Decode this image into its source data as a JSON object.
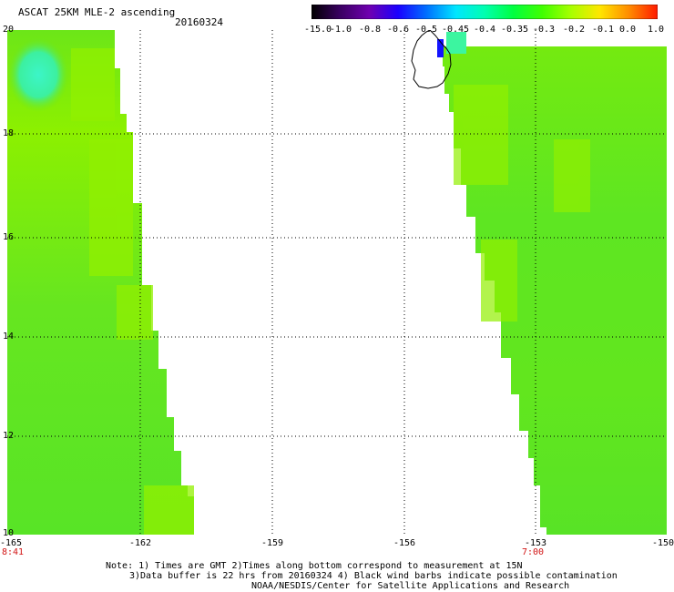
{
  "header": {
    "title": "ASCAT 25KM MLE-2 ascending",
    "date": "20160324"
  },
  "colorbar": {
    "labels": [
      "-15.0",
      "-1.0",
      "-0.8",
      "-0.6",
      "-0.5",
      "-0.45",
      "-0.4",
      "-0.35",
      "-0.3",
      "-0.2",
      "-0.1",
      "0.0",
      "1.0"
    ],
    "colors": [
      "#000000",
      "#3a0062",
      "#6f00b0",
      "#1a00ff",
      "#0070ff",
      "#00e6ff",
      "#00ffb0",
      "#00ff40",
      "#40ff00",
      "#a8ff00",
      "#ffe600",
      "#ff8c00",
      "#ff1a00"
    ]
  },
  "map": {
    "lat_labels": [
      "20",
      "18",
      "16",
      "14",
      "12",
      "10"
    ],
    "lon_labels": [
      "-165",
      "-162",
      "-159",
      "-156",
      "-153",
      "-150"
    ],
    "time_labels": [
      "8:41",
      "7:00"
    ],
    "fill_colors": {
      "lime": "#8cf000",
      "green": "#50e628",
      "cyan": "#3cf5c8",
      "blue": "#1414ff"
    }
  },
  "notes": {
    "line1": "Note: 1) Times are GMT 2)Times along bottom correspond to measurement at 15N",
    "line2": "3)Data buffer is 22 hrs from 20160324 4) Black wind barbs indicate possible contamination",
    "line3": "NOAA/NESDIS/Center for Satellite Applications and Research"
  }
}
